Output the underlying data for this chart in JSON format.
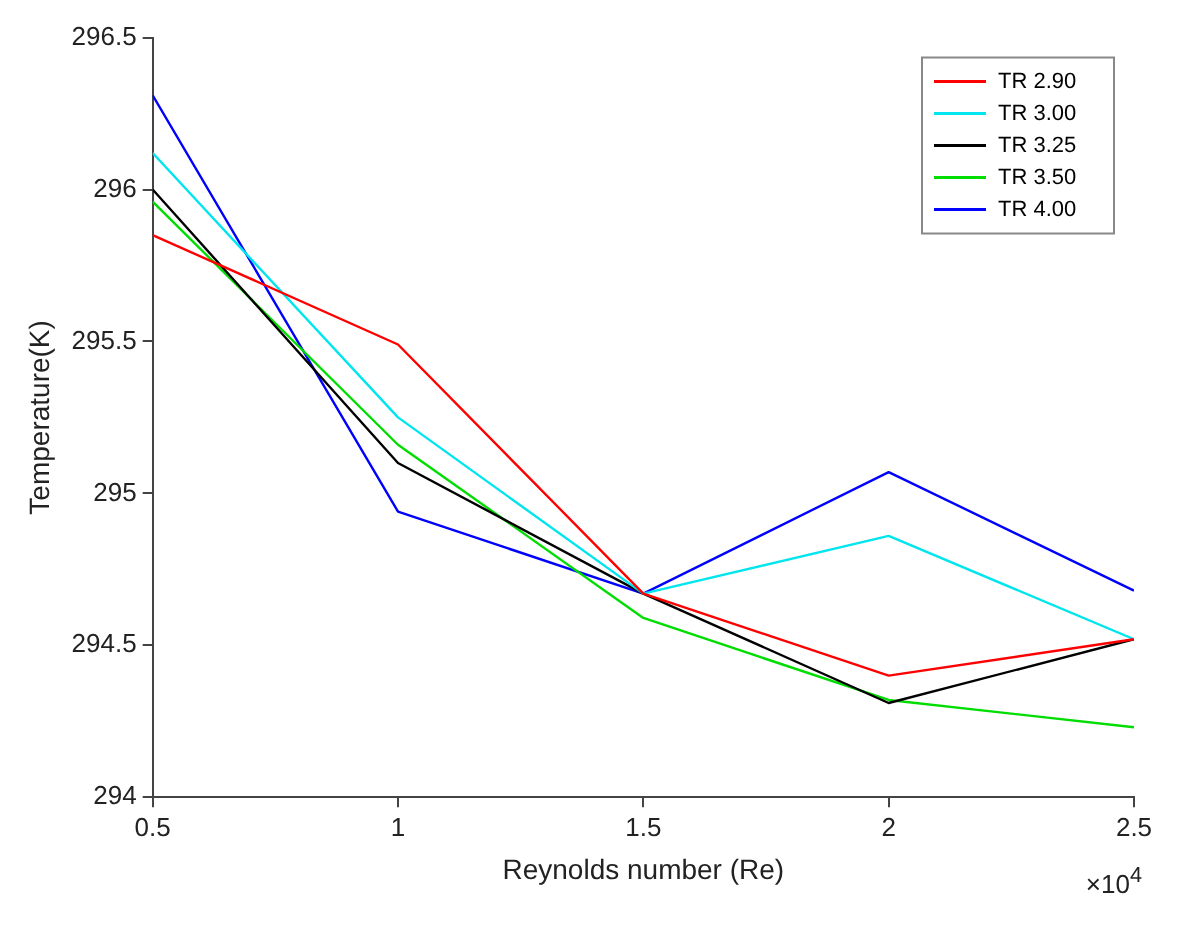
{
  "chart_data": {
    "type": "line",
    "xlabel": "Reynolds number (Re)",
    "ylabel": "Temperature(K)",
    "annotations": [
      "×10$^{4}$"
    ],
    "x": [
      0.5,
      1,
      1.5,
      2,
      2.5
    ],
    "series": [
      {
        "name": "TR 2.90",
        "color": "#ff0000",
        "values": [
          295.85,
          295.49,
          294.67,
          294.4,
          294.52
        ]
      },
      {
        "name": "TR 3.00",
        "color": "#00e5ee",
        "values": [
          296.12,
          295.25,
          294.67,
          294.86,
          294.52
        ]
      },
      {
        "name": "TR 3.25",
        "color": "#000000",
        "values": [
          296.0,
          295.1,
          294.67,
          294.31,
          294.52
        ]
      },
      {
        "name": "TR 3.50",
        "color": "#00dd00",
        "values": [
          295.96,
          295.16,
          294.59,
          294.32,
          294.23
        ]
      },
      {
        "name": "TR 4.00",
        "color": "#0000ff",
        "values": [
          296.31,
          294.94,
          294.67,
          295.07,
          294.68
        ]
      }
    ],
    "xlim": [
      0.5,
      2.5
    ],
    "xticks": [
      0.5,
      1,
      1.5,
      2,
      2.5
    ],
    "ylim": [
      294,
      296.5
    ],
    "yticks": [
      294,
      294.5,
      295,
      295.5,
      296,
      296.5
    ],
    "grid": false,
    "legend": "top right",
    "marker": "none",
    "line_style": "solid"
  }
}
